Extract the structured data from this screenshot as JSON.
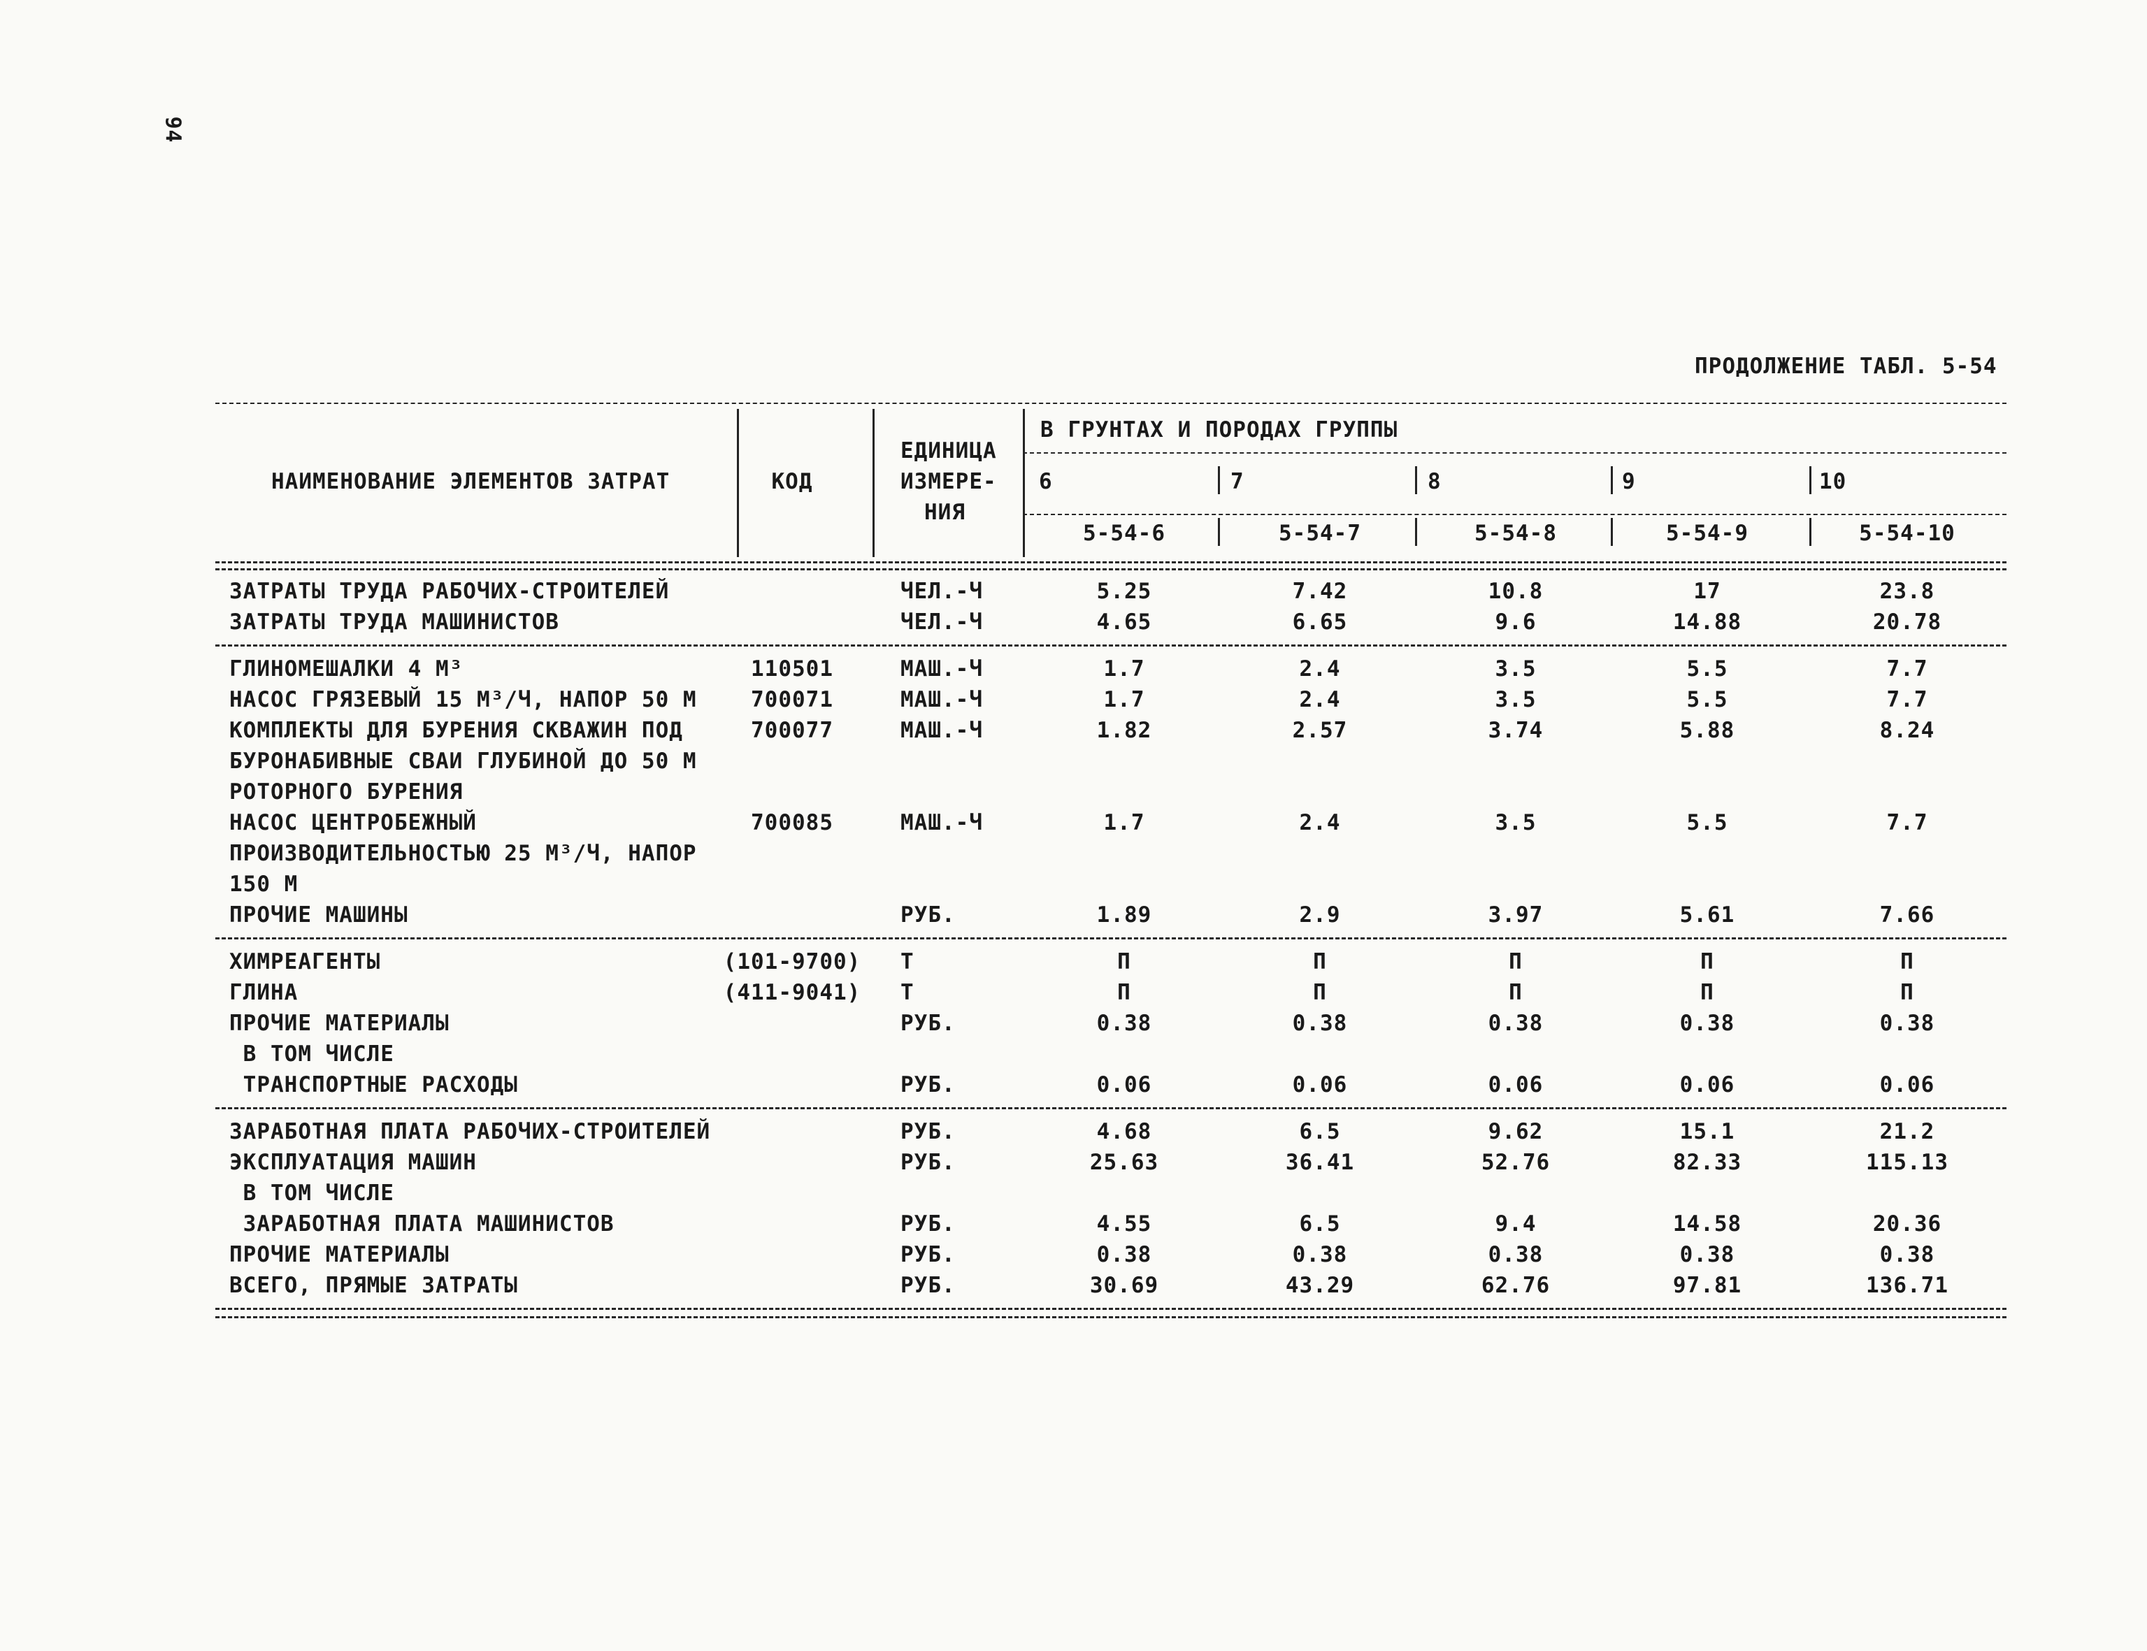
{
  "page": {
    "number": "94",
    "title": "ПРОДОЛЖЕНИЕ ТАБЛ. 5-54"
  },
  "table": {
    "headers": {
      "name": "НАИМЕНОВАНИЕ ЭЛЕМЕНТОВ ЗАТРАТ",
      "code": "КОД",
      "unit_line1": "ЕДИНИЦА",
      "unit_line2": "ИЗМЕРЕ-",
      "unit_line3": "НИЯ",
      "group_title": "В ГРУНТАХ И ПОРОДАХ ГРУППЫ",
      "groups": [
        "6",
        "7",
        "8",
        "9",
        "10"
      ],
      "subcols": [
        "5-54-6",
        "5-54-7",
        "5-54-8",
        "5-54-9",
        "5-54-10"
      ]
    },
    "sections": [
      {
        "lines": [
          {
            "name": "ЗАТРАТЫ ТРУДА РАБОЧИХ-СТРОИТЕЛЕЙ",
            "code": "",
            "unit": "ЧЕЛ.-Ч",
            "v": [
              "5.25",
              "7.42",
              "10.8",
              "17",
              "23.8"
            ]
          },
          {
            "name": "ЗАТРАТЫ ТРУДА МАШИНИСТОВ",
            "code": "",
            "unit": "ЧЕЛ.-Ч",
            "v": [
              "4.65",
              "6.65",
              "9.6",
              "14.88",
              "20.78"
            ]
          }
        ]
      },
      {
        "lines": [
          {
            "name": "ГЛИНОМЕШАЛКИ 4 М³",
            "code": "110501",
            "unit": "МАШ.-Ч",
            "v": [
              "1.7",
              "2.4",
              "3.5",
              "5.5",
              "7.7"
            ]
          },
          {
            "name": "НАСОС ГРЯЗЕВЫЙ 15 М³/Ч, НАПОР 50 М",
            "code": "700071",
            "unit": "МАШ.-Ч",
            "v": [
              "1.7",
              "2.4",
              "3.5",
              "5.5",
              "7.7"
            ]
          },
          {
            "name": "КОМПЛЕКТЫ ДЛЯ БУРЕНИЯ СКВАЖИН ПОД",
            "code": "700077",
            "unit": "МАШ.-Ч",
            "v": [
              "1.82",
              "2.57",
              "3.74",
              "5.88",
              "8.24"
            ]
          },
          {
            "name": "БУРОНАБИВНЫЕ СВАИ ГЛУБИНОЙ ДО 50 М"
          },
          {
            "name": "РОТОРНОГО БУРЕНИЯ"
          },
          {
            "name": "НАСОС ЦЕНТРОБЕЖНЫЙ",
            "code": "700085",
            "unit": "МАШ.-Ч",
            "v": [
              "1.7",
              "2.4",
              "3.5",
              "5.5",
              "7.7"
            ]
          },
          {
            "name": "ПРОИЗВОДИТЕЛЬНОСТЬЮ 25 М³/Ч, НАПОР"
          },
          {
            "name": "150 М"
          },
          {
            "name": "ПРОЧИЕ МАШИНЫ",
            "code": "",
            "unit": "РУБ.",
            "v": [
              "1.89",
              "2.9",
              "3.97",
              "5.61",
              "7.66"
            ]
          }
        ]
      },
      {
        "lines": [
          {
            "name": "ХИМРЕАГЕНТЫ",
            "code": "(101-9700)",
            "unit": "Т",
            "v": [
              "П",
              "П",
              "П",
              "П",
              "П"
            ]
          },
          {
            "name": "ГЛИНА",
            "code": "(411-9041)",
            "unit": "Т",
            "v": [
              "П",
              "П",
              "П",
              "П",
              "П"
            ]
          },
          {
            "name": "ПРОЧИЕ МАТЕРИАЛЫ",
            "code": "",
            "unit": "РУБ.",
            "v": [
              "0.38",
              "0.38",
              "0.38",
              "0.38",
              "0.38"
            ]
          },
          {
            "name": " В ТОМ ЧИСЛЕ"
          },
          {
            "name": " ТРАНСПОРТНЫЕ РАСХОДЫ",
            "code": "",
            "unit": "РУБ.",
            "v": [
              "0.06",
              "0.06",
              "0.06",
              "0.06",
              "0.06"
            ]
          }
        ]
      },
      {
        "lines": [
          {
            "name": "ЗАРАБОТНАЯ ПЛАТА РАБОЧИХ-СТРОИТЕЛЕЙ",
            "code": "",
            "unit": "РУБ.",
            "v": [
              "4.68",
              "6.5",
              "9.62",
              "15.1",
              "21.2"
            ]
          },
          {
            "name": "ЭКСПЛУАТАЦИЯ МАШИН",
            "code": "",
            "unit": "РУБ.",
            "v": [
              "25.63",
              "36.41",
              "52.76",
              "82.33",
              "115.13"
            ]
          },
          {
            "name": " В ТОМ ЧИСЛЕ"
          },
          {
            "name": " ЗАРАБОТНАЯ ПЛАТА МАШИНИСТОВ",
            "code": "",
            "unit": "РУБ.",
            "v": [
              "4.55",
              "6.5",
              "9.4",
              "14.58",
              "20.36"
            ]
          },
          {
            "name": "ПРОЧИЕ МАТЕРИАЛЫ",
            "code": "",
            "unit": "РУБ.",
            "v": [
              "0.38",
              "0.38",
              "0.38",
              "0.38",
              "0.38"
            ]
          },
          {
            "name": "ВСЕГО, ПРЯМЫЕ ЗАТРАТЫ",
            "code": "",
            "unit": "РУБ.",
            "v": [
              "30.69",
              "43.29",
              "62.76",
              "97.81",
              "136.71"
            ]
          }
        ]
      }
    ]
  }
}
